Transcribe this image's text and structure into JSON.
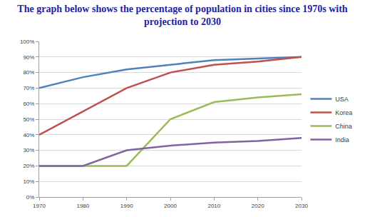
{
  "chart_data": {
    "type": "line",
    "title": "The graph below shows the percentage of population in cities since 1970s with projection to 2030",
    "categories": [
      "1970",
      "1980",
      "1990",
      "2000",
      "2010",
      "2020",
      "2030"
    ],
    "series": [
      {
        "name": "USA",
        "color": "#4f81bd",
        "values": [
          70,
          77,
          82,
          85,
          88,
          89,
          90
        ]
      },
      {
        "name": "Korea",
        "color": "#c0504d",
        "values": [
          40,
          55,
          70,
          80,
          85,
          87,
          90
        ]
      },
      {
        "name": "China",
        "color": "#9bbb59",
        "values": [
          20,
          20,
          20,
          50,
          61,
          64,
          66
        ]
      },
      {
        "name": "India",
        "color": "#8064a2",
        "values": [
          20,
          20,
          30,
          33,
          35,
          36,
          38
        ]
      }
    ],
    "ylim": [
      0,
      100
    ],
    "yticks": [
      {
        "value": 0,
        "label": "0%"
      },
      {
        "value": 10,
        "label": "10%"
      },
      {
        "value": 20,
        "label": "20%"
      },
      {
        "value": 30,
        "label": "30%"
      },
      {
        "value": 40,
        "label": "40%"
      },
      {
        "value": 50,
        "label": "50%"
      },
      {
        "value": 60,
        "label": "60%"
      },
      {
        "value": 70,
        "label": "70%"
      },
      {
        "value": 80,
        "label": "80%"
      },
      {
        "value": 90,
        "label": "90%"
      },
      {
        "value": 100,
        "label": "100%"
      }
    ],
    "grid": true,
    "legend": "right"
  }
}
